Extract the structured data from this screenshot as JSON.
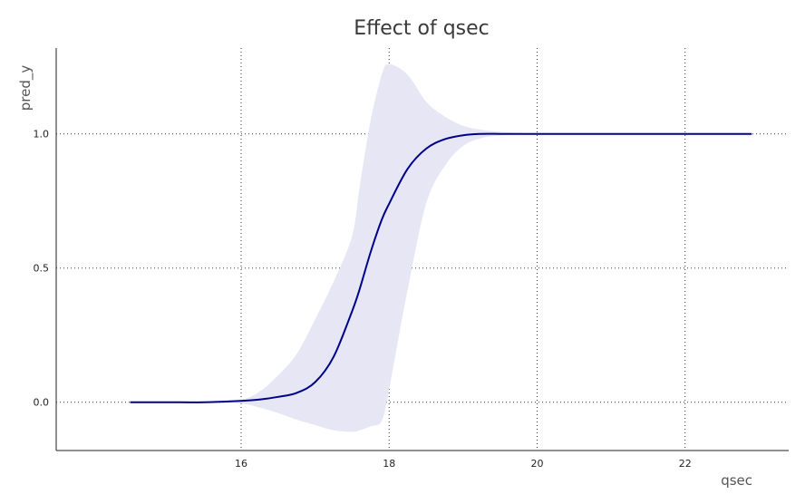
{
  "chart_data": {
    "type": "line",
    "title": "Effect of qsec",
    "xlabel": "qsec",
    "ylabel": "pred_y",
    "xlim": [
      13.5,
      23.4
    ],
    "ylim": [
      -0.18,
      1.32
    ],
    "x_ticks": [
      16,
      18,
      20,
      22
    ],
    "x_tick_labels": [
      "16",
      "18",
      "20",
      "22"
    ],
    "y_ticks": [
      0.0,
      0.5,
      1.0
    ],
    "y_tick_labels": [
      "0.0",
      "0.5",
      "1.0"
    ],
    "grid": true,
    "line_color": "#00008b",
    "band_color": "#e6e6f5",
    "series": [
      {
        "x": [
          14.5,
          15.0,
          15.5,
          16.0,
          16.25,
          16.5,
          16.75,
          17.0,
          17.25,
          17.5,
          17.6,
          17.75,
          17.9,
          18.0,
          18.25,
          18.5,
          18.75,
          19.0,
          19.25,
          19.5,
          19.75,
          20.0,
          21.0,
          22.0,
          22.9
        ],
        "y": [
          0.0,
          0.0,
          0.0,
          0.005,
          0.01,
          0.02,
          0.035,
          0.075,
          0.17,
          0.34,
          0.42,
          0.56,
          0.68,
          0.74,
          0.87,
          0.945,
          0.98,
          0.995,
          1.0,
          1.0,
          1.0,
          1.0,
          1.0,
          1.0,
          1.0
        ],
        "lower": [
          0.0,
          0.0,
          0.0,
          -0.005,
          -0.02,
          -0.04,
          -0.065,
          -0.085,
          -0.105,
          -0.11,
          -0.105,
          -0.09,
          -0.07,
          0.05,
          0.42,
          0.74,
          0.88,
          0.955,
          0.985,
          0.995,
          1.0,
          1.0,
          1.0,
          1.0,
          1.0
        ],
        "upper": [
          0.0,
          0.0,
          0.0,
          0.01,
          0.04,
          0.1,
          0.18,
          0.31,
          0.45,
          0.62,
          0.8,
          1.05,
          1.22,
          1.26,
          1.22,
          1.12,
          1.065,
          1.03,
          1.015,
          1.008,
          1.004,
          1.0,
          1.0,
          1.0,
          1.0
        ]
      }
    ]
  }
}
